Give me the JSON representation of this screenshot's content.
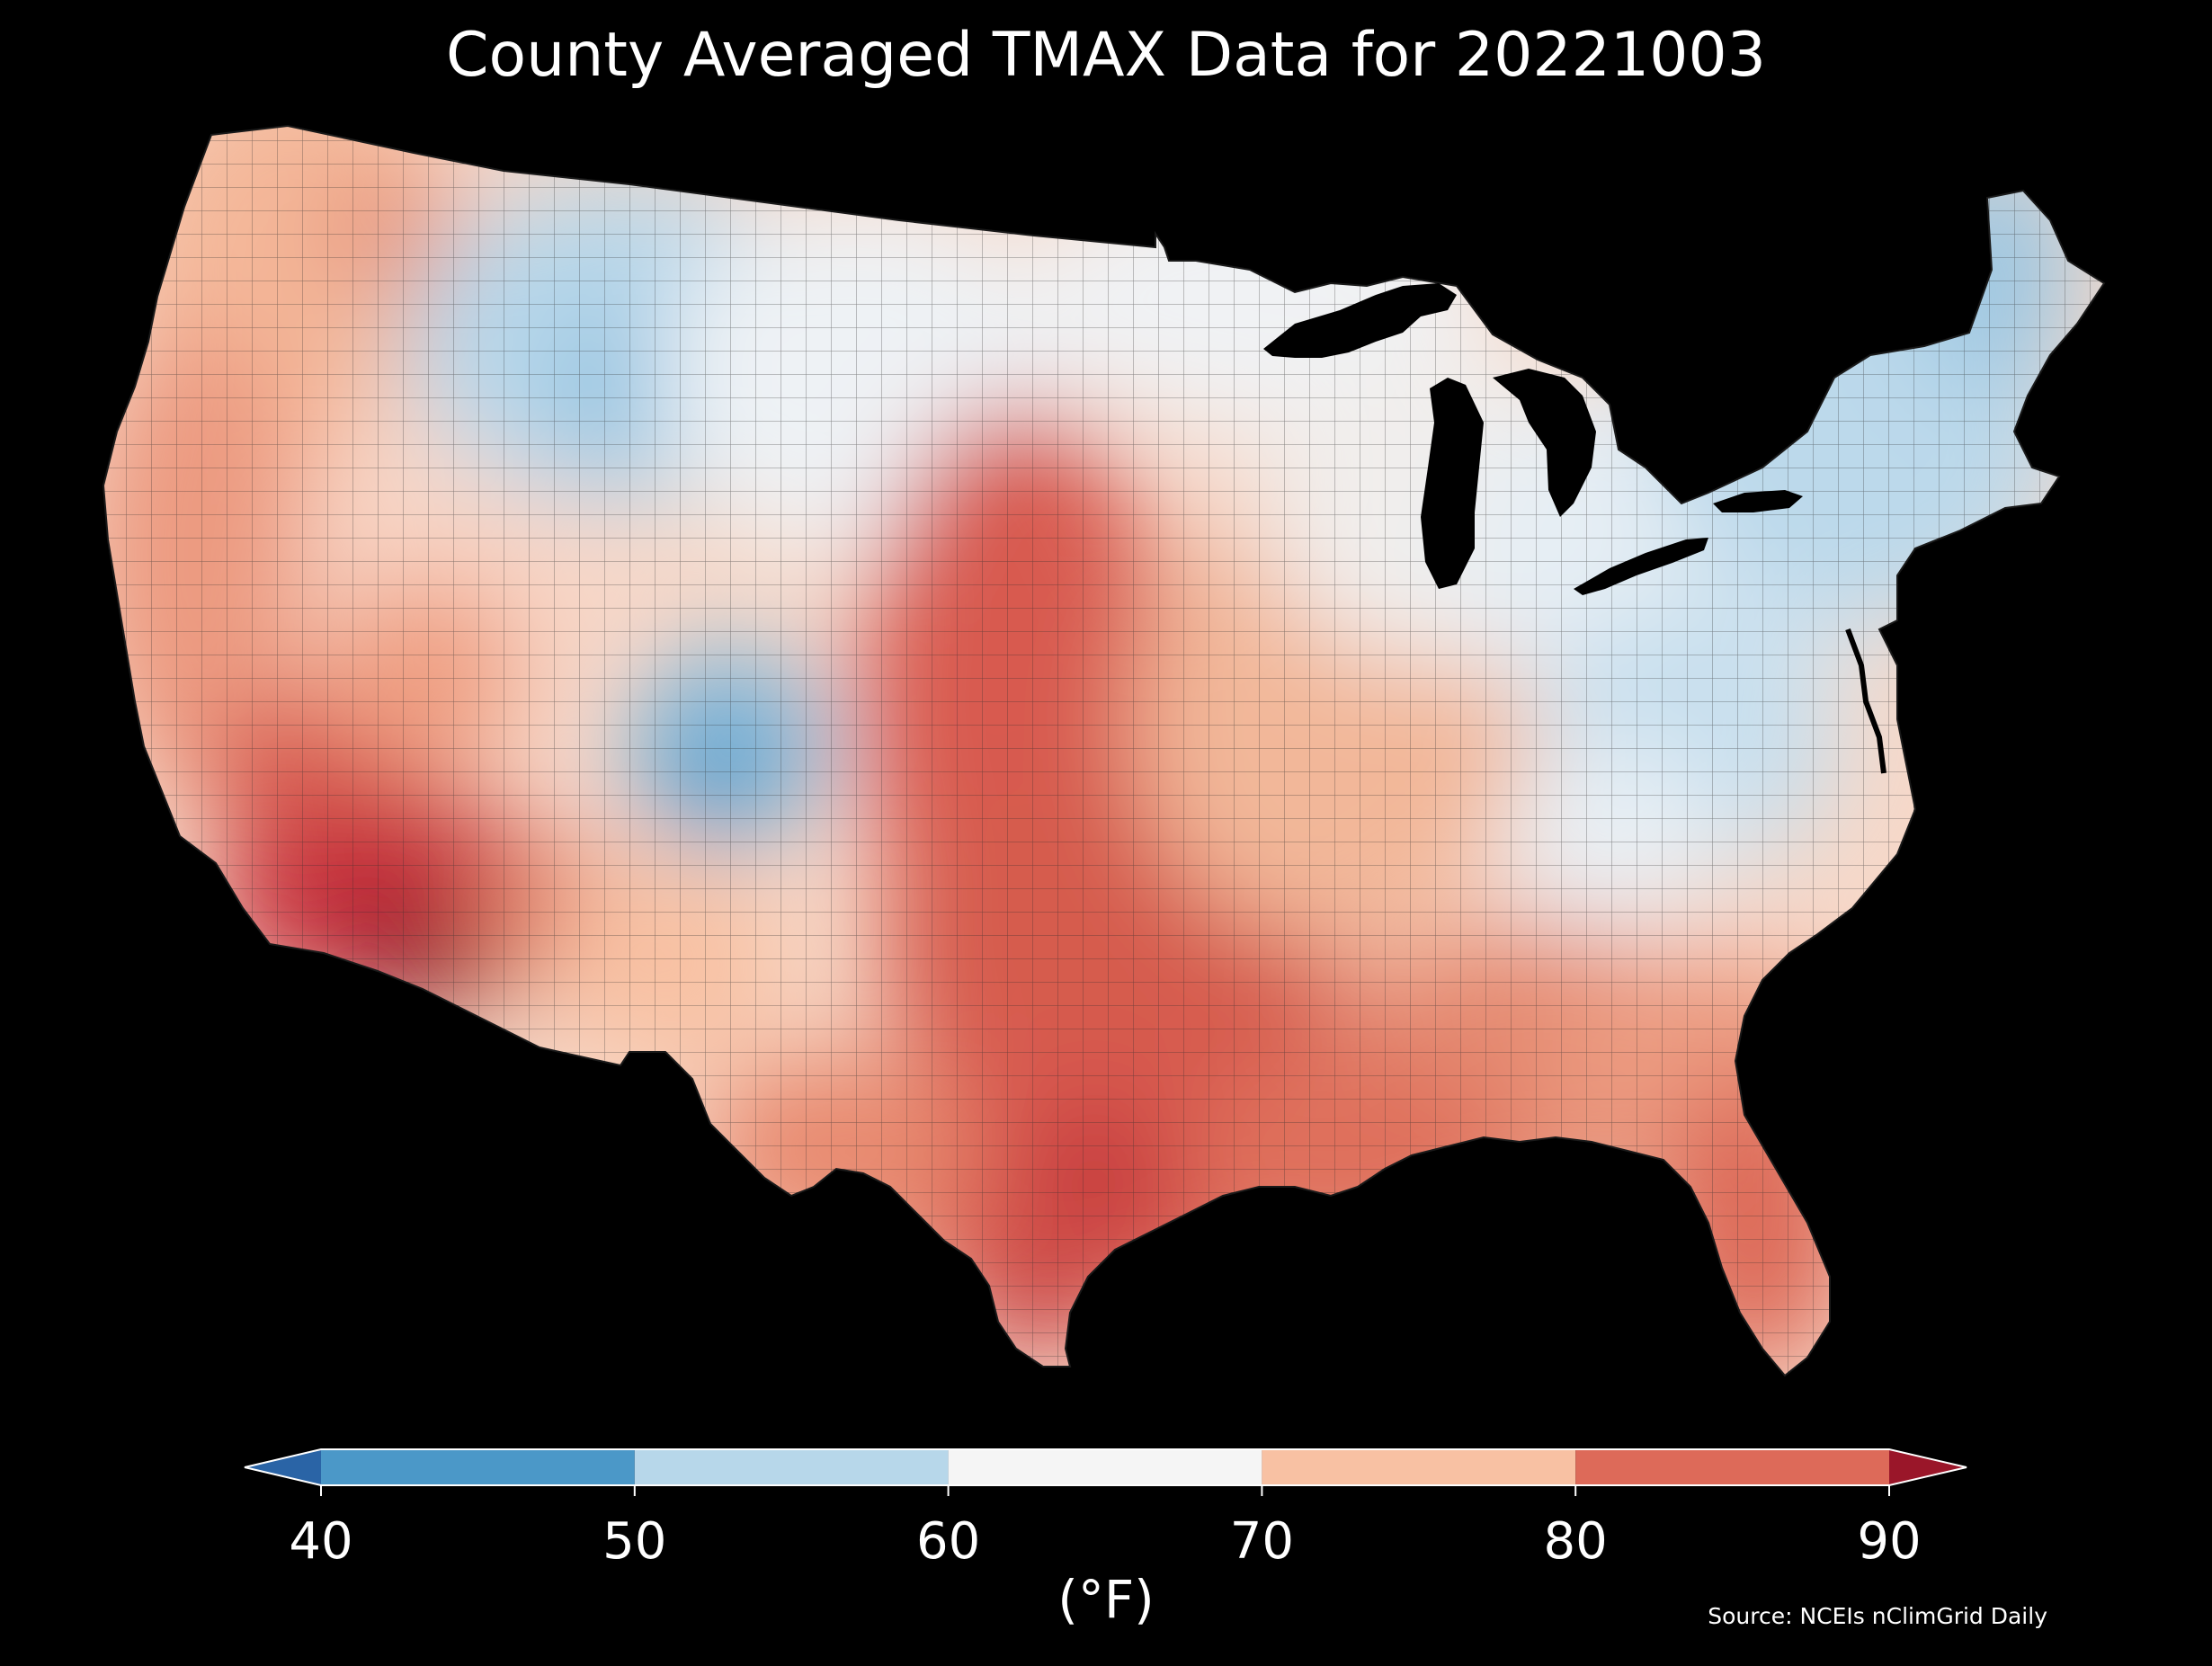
{
  "title": "County Averaged TMAX Data for 20221003",
  "source": "Source: NCEIs nClimGrid Daily",
  "colorbar": {
    "unit": "(°F)",
    "ticks": [
      "40",
      "50",
      "60",
      "70",
      "80",
      "90"
    ],
    "bins": [
      {
        "from": 40,
        "to": 50,
        "color": "#4b98c8"
      },
      {
        "from": 50,
        "to": 60,
        "color": "#b7d7ea"
      },
      {
        "from": 60,
        "to": 70,
        "color": "#f5f5f5"
      },
      {
        "from": 70,
        "to": 80,
        "color": "#f8c1a3"
      },
      {
        "from": 80,
        "to": 90,
        "color": "#dd6a59"
      }
    ],
    "under_color": "#2a64a6",
    "over_color": "#9a1629"
  },
  "map": {
    "region": "Contiguous United States",
    "units": "°F",
    "background": "#000000",
    "water_color": "#000000",
    "county_line_color": "#222222",
    "regions": [
      {
        "name": "Pacific Northwest",
        "approx_value": 72,
        "color": "#f6c9b0"
      },
      {
        "name": "California Central Valley",
        "approx_value": 78,
        "color": "#e88a70"
      },
      {
        "name": "Desert Southwest",
        "approx_value": 88,
        "color": "#c0313a"
      },
      {
        "name": "Northern Rockies",
        "approx_value": 55,
        "color": "#b7d7ea"
      },
      {
        "name": "Colorado Rockies",
        "approx_value": 48,
        "color": "#77b2d8"
      },
      {
        "name": "Northern Plains",
        "approx_value": 62,
        "color": "#eef1f4"
      },
      {
        "name": "Central and Southern Plains",
        "approx_value": 82,
        "color": "#dd6a59"
      },
      {
        "name": "Midwest",
        "approx_value": 70,
        "color": "#f7d8c8"
      },
      {
        "name": "Great Lakes",
        "approx_value": 62,
        "color": "#eef1f4"
      },
      {
        "name": "Appalachians",
        "approx_value": 57,
        "color": "#d0e4f0"
      },
      {
        "name": "Northeast",
        "approx_value": 55,
        "color": "#b7d7ea"
      },
      {
        "name": "Maine",
        "approx_value": 52,
        "color": "#a0c9e3"
      },
      {
        "name": "Southeast",
        "approx_value": 80,
        "color": "#e07a64"
      },
      {
        "name": "Texas Gulf Coast",
        "approx_value": 84,
        "color": "#d2524a"
      },
      {
        "name": "South Texas",
        "approx_value": 87,
        "color": "#c63a3e"
      },
      {
        "name": "Florida",
        "approx_value": 81,
        "color": "#dd6a59"
      }
    ]
  }
}
